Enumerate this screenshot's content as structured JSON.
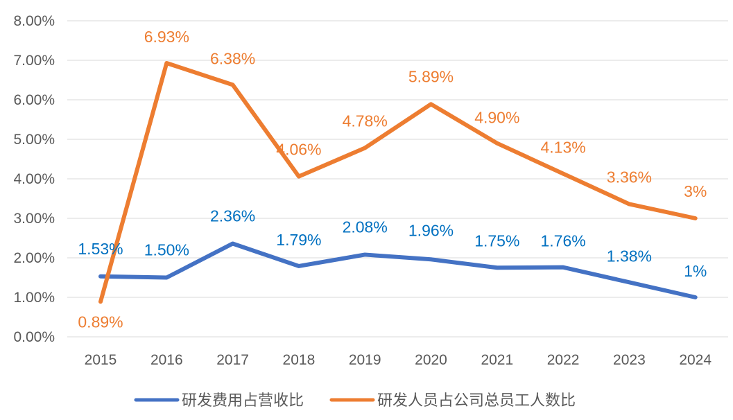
{
  "chart_data": {
    "type": "line",
    "title": "",
    "xlabel": "",
    "ylabel": "",
    "categories": [
      "2015",
      "2016",
      "2017",
      "2018",
      "2019",
      "2020",
      "2021",
      "2022",
      "2023",
      "2024"
    ],
    "ylim": [
      0,
      8
    ],
    "y_ticks": [
      "0.00%",
      "1.00%",
      "2.00%",
      "3.00%",
      "4.00%",
      "5.00%",
      "6.00%",
      "7.00%",
      "8.00%"
    ],
    "grid": true,
    "legend_position": "bottom",
    "series": [
      {
        "name": "研发费用占营收比",
        "color": "#4472C4",
        "label_color": "#0070C0",
        "values": [
          1.53,
          1.5,
          2.36,
          1.79,
          2.08,
          1.96,
          1.75,
          1.76,
          1.38,
          1.0
        ],
        "labels": [
          "1.53%",
          "1.50%",
          "2.36%",
          "1.79%",
          "2.08%",
          "1.96%",
          "1.75%",
          "1.76%",
          "1.38%",
          "1%"
        ]
      },
      {
        "name": "研发人员占公司总员工人数比",
        "color": "#ED7D31",
        "label_color": "#ED7D31",
        "values": [
          0.89,
          6.93,
          6.38,
          4.06,
          4.78,
          5.89,
          4.9,
          4.13,
          3.36,
          3.0
        ],
        "labels": [
          "0.89%",
          "6.93%",
          "6.38%",
          "4.06%",
          "4.78%",
          "5.89%",
          "4.90%",
          "4.13%",
          "3.36%",
          "3%"
        ]
      }
    ]
  }
}
